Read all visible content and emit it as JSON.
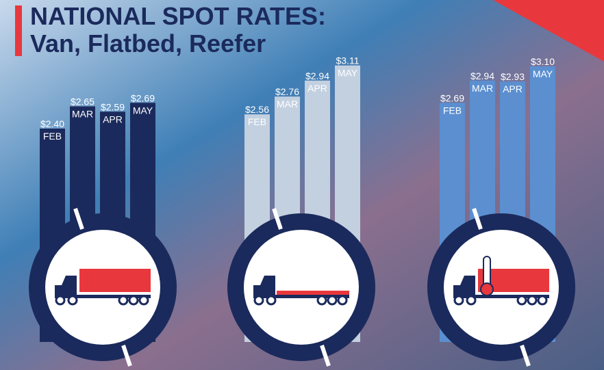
{
  "header": {
    "title_line1": "NATIONAL SPOT RATES:",
    "title_line2": "Van, Flatbed, Reefer"
  },
  "chart_data": [
    {
      "type": "bar",
      "color": "#1b2a5c",
      "categories": [
        "FEB",
        "MAR",
        "APR",
        "MAY"
      ],
      "values": [
        2.4,
        2.65,
        2.59,
        2.69
      ],
      "value_labels": [
        "$2.40",
        "$2.65",
        "$2.59",
        "$2.69"
      ]
    },
    {
      "type": "bar",
      "color": "#c3d0e0",
      "categories": [
        "FEB",
        "MAR",
        "APR",
        "MAY"
      ],
      "values": [
        2.56,
        2.76,
        2.94,
        3.11
      ],
      "value_labels": [
        "$2.56",
        "$2.76",
        "$2.94",
        "$3.11"
      ]
    },
    {
      "type": "bar",
      "color": "#5b8fd0",
      "categories": [
        "FEB",
        "MAR",
        "APR",
        "MAY"
      ],
      "values": [
        2.69,
        2.94,
        2.93,
        3.1
      ],
      "value_labels": [
        "$2.69",
        "$2.94",
        "$2.93",
        "$3.10"
      ]
    }
  ]
}
